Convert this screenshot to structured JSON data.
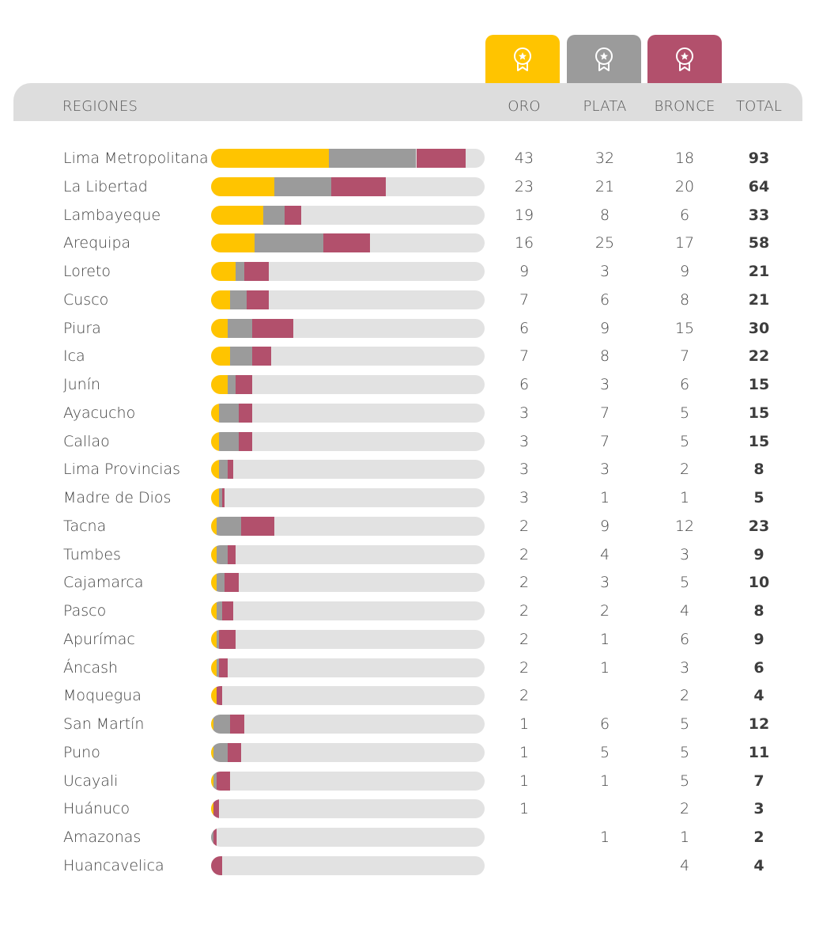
{
  "header": {
    "regiones": "REGIONES",
    "oro": "ORO",
    "plata": "PLATA",
    "bronce": "BRONCE",
    "total": "TOTAL"
  },
  "colors": {
    "gold": "#ffc400",
    "silver": "#9b9b9b",
    "bronze": "#b2506c",
    "track": "#e2e2e2",
    "header_bg": "#dddddd"
  },
  "icons": {
    "gold": "medal-icon",
    "silver": "medal-icon",
    "bronze": "medal-icon"
  },
  "chart_data": {
    "type": "bar",
    "stacked": true,
    "orientation": "horizontal",
    "scale_max": 100,
    "categories": [
      "Lima Metropolitana",
      "La Libertad",
      "Lambayeque",
      "Arequipa",
      "Loreto",
      "Cusco",
      "Piura",
      "Ica",
      "Junín",
      "Ayacucho",
      "Callao",
      "Lima Provincias",
      "Madre de Dios",
      "Tacna",
      "Tumbes",
      "Cajamarca",
      "Pasco",
      "Apurímac",
      "Áncash",
      "Moquegua",
      "San Martín",
      "Puno",
      "Ucayali",
      "Huánuco",
      "Amazonas",
      "Huancavelica"
    ],
    "series": [
      {
        "name": "ORO",
        "values": [
          43,
          23,
          19,
          16,
          9,
          7,
          6,
          7,
          6,
          3,
          3,
          3,
          3,
          2,
          2,
          2,
          2,
          2,
          2,
          2,
          1,
          1,
          1,
          1,
          null,
          null
        ]
      },
      {
        "name": "PLATA",
        "values": [
          32,
          21,
          8,
          25,
          3,
          6,
          9,
          8,
          3,
          7,
          7,
          3,
          1,
          9,
          4,
          3,
          2,
          1,
          1,
          null,
          6,
          5,
          1,
          null,
          1,
          null
        ]
      },
      {
        "name": "BRONCE",
        "values": [
          18,
          20,
          6,
          17,
          9,
          8,
          15,
          7,
          6,
          5,
          5,
          2,
          1,
          12,
          3,
          5,
          4,
          6,
          3,
          2,
          5,
          5,
          5,
          2,
          1,
          4
        ]
      }
    ],
    "totals": [
      93,
      64,
      33,
      58,
      21,
      21,
      30,
      22,
      15,
      15,
      15,
      8,
      5,
      23,
      9,
      10,
      8,
      9,
      6,
      4,
      12,
      11,
      7,
      3,
      2,
      4
    ]
  }
}
